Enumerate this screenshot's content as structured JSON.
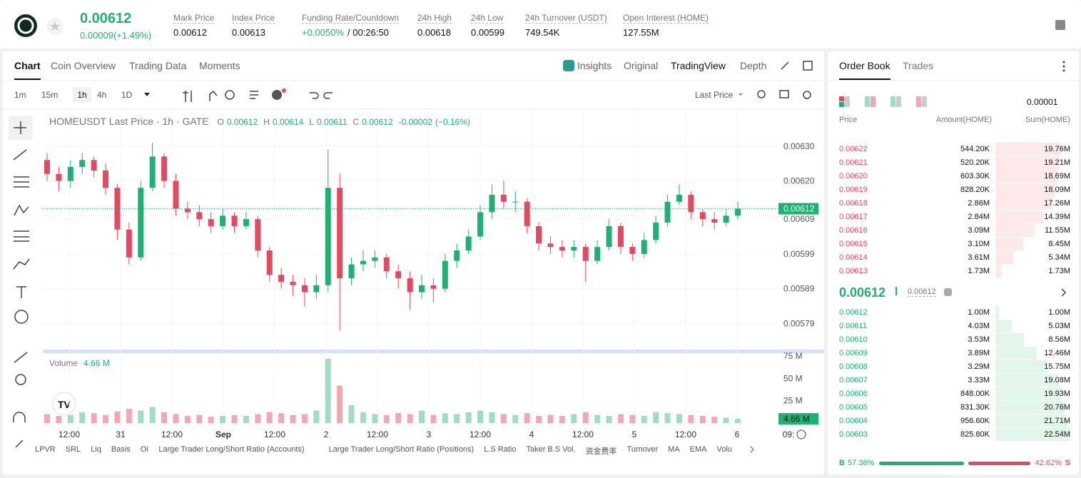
{
  "header": {
    "price": "0.00612",
    "change": "0.00009(+1.49%)",
    "stats": [
      {
        "label": "Mark Price",
        "value": "0.00612"
      },
      {
        "label": "Index Price",
        "value": "0.00613"
      },
      {
        "label": "Funding Rate/Countdown",
        "value": "+0.0050%",
        "countdown": "/ 00:26:50"
      },
      {
        "label": "24h High",
        "value": "0.00618"
      },
      {
        "label": "24h Low",
        "value": "0.00599"
      },
      {
        "label": "24h Turnover (USDT)",
        "value": "749.54K"
      },
      {
        "label": "Open Interest (HOME)",
        "value": "127.55M"
      }
    ]
  },
  "tabs": [
    "Chart",
    "Coin Overview",
    "Trading Data",
    "Moments"
  ],
  "views": [
    "Insights",
    "Original",
    "TradingView",
    "Depth"
  ],
  "intervals": [
    "1m",
    "15m",
    "1h",
    "4h",
    "1D"
  ],
  "price_type": "Last Price",
  "chart_data": {
    "type": "candlestick",
    "symbol": "HOMEUSDT Last Price · 1h · GATE",
    "ohlc": [
      {
        "key": "O",
        "value": "0.00612"
      },
      {
        "key": "H",
        "value": "0.00614"
      },
      {
        "key": "L",
        "value": "0.00611"
      },
      {
        "key": "C",
        "value": "0.00612"
      }
    ],
    "change": "-0.00002",
    "change_pct": "(−0.16%)",
    "ylim": [
      0.005715,
      0.0064
    ],
    "yticks": [
      {
        "value": 0.0063,
        "label": "0.00630"
      },
      {
        "value": 0.0062,
        "label": "0.00620"
      },
      0.00609,
      0.00599,
      0.00589,
      0.00579
    ],
    "last_price": 0.00612,
    "candles": [
      [
        0.00626,
        0.00628,
        0.0062,
        0.00622
      ],
      [
        0.00622,
        0.00624,
        0.00617,
        0.0062
      ],
      [
        0.0062,
        0.00626,
        0.00618,
        0.00624
      ],
      [
        0.00624,
        0.00628,
        0.00622,
        0.00626
      ],
      [
        0.00626,
        0.00627,
        0.00621,
        0.00623
      ],
      [
        0.00623,
        0.00625,
        0.00616,
        0.00618
      ],
      [
        0.00618,
        0.00619,
        0.00603,
        0.00606
      ],
      [
        0.00606,
        0.00608,
        0.00596,
        0.00598
      ],
      [
        0.00598,
        0.0062,
        0.00597,
        0.00618
      ],
      [
        0.00618,
        0.00631,
        0.00617,
        0.00627
      ],
      [
        0.00627,
        0.00628,
        0.00618,
        0.0062
      ],
      [
        0.0062,
        0.00622,
        0.0061,
        0.00612
      ],
      [
        0.00612,
        0.00614,
        0.00609,
        0.00611
      ],
      [
        0.00611,
        0.00613,
        0.00607,
        0.00609
      ],
      [
        0.00609,
        0.00611,
        0.00605,
        0.00607
      ],
      [
        0.00607,
        0.00612,
        0.00606,
        0.0061
      ],
      [
        0.0061,
        0.00611,
        0.00605,
        0.00607
      ],
      [
        0.00607,
        0.00611,
        0.00606,
        0.00609
      ],
      [
        0.00609,
        0.0061,
        0.00598,
        0.006
      ],
      [
        0.006,
        0.00601,
        0.00591,
        0.00593
      ],
      [
        0.00593,
        0.00595,
        0.00589,
        0.00591
      ],
      [
        0.00591,
        0.00593,
        0.00587,
        0.0059
      ],
      [
        0.0059,
        0.00592,
        0.00584,
        0.00588
      ],
      [
        0.00588,
        0.00593,
        0.00586,
        0.0059
      ],
      [
        0.0059,
        0.00629,
        0.00588,
        0.00618
      ],
      [
        0.00618,
        0.00622,
        0.00577,
        0.00592
      ],
      [
        0.00592,
        0.00598,
        0.0059,
        0.00596
      ],
      [
        0.00596,
        0.006,
        0.00594,
        0.00597
      ],
      [
        0.00597,
        0.006,
        0.00595,
        0.00598
      ],
      [
        0.00598,
        0.00599,
        0.00592,
        0.00594
      ],
      [
        0.00594,
        0.00596,
        0.00589,
        0.00592
      ],
      [
        0.00592,
        0.00594,
        0.00583,
        0.00588
      ],
      [
        0.00588,
        0.00593,
        0.00586,
        0.0059
      ],
      [
        0.0059,
        0.00592,
        0.00585,
        0.00589
      ],
      [
        0.00589,
        0.00599,
        0.00588,
        0.00597
      ],
      [
        0.00597,
        0.00602,
        0.00595,
        0.006
      ],
      [
        0.006,
        0.00606,
        0.00599,
        0.00604
      ],
      [
        0.00604,
        0.00613,
        0.00603,
        0.00611
      ],
      [
        0.00611,
        0.00619,
        0.00609,
        0.00616
      ],
      [
        0.00616,
        0.0062,
        0.00612,
        0.00614
      ],
      [
        0.00614,
        0.00617,
        0.00611,
        0.00614
      ],
      [
        0.00614,
        0.00615,
        0.00605,
        0.00607
      ],
      [
        0.00607,
        0.00608,
        0.006,
        0.00602
      ],
      [
        0.00602,
        0.00604,
        0.00599,
        0.00601
      ],
      [
        0.00601,
        0.00603,
        0.00598,
        0.006
      ],
      [
        0.006,
        0.00603,
        0.00598,
        0.00601
      ],
      [
        0.00601,
        0.00602,
        0.00591,
        0.00597
      ],
      [
        0.00597,
        0.00603,
        0.00596,
        0.00601
      ],
      [
        0.00601,
        0.00609,
        0.006,
        0.00607
      ],
      [
        0.00607,
        0.00608,
        0.00599,
        0.00601
      ],
      [
        0.00601,
        0.00602,
        0.00597,
        0.00599
      ],
      [
        0.00599,
        0.00605,
        0.00598,
        0.00603
      ],
      [
        0.00603,
        0.0061,
        0.00602,
        0.00608
      ],
      [
        0.00608,
        0.00616,
        0.00607,
        0.00614
      ],
      [
        0.00614,
        0.00619,
        0.00613,
        0.00616
      ],
      [
        0.00616,
        0.00617,
        0.00609,
        0.00611
      ],
      [
        0.00611,
        0.00612,
        0.00607,
        0.00609
      ],
      [
        0.00609,
        0.00611,
        0.00606,
        0.00608
      ],
      [
        0.00608,
        0.00612,
        0.00607,
        0.0061
      ],
      [
        0.0061,
        0.00614,
        0.00609,
        0.00612
      ]
    ],
    "volume_title": "Volume",
    "volume_label": "4.66 M",
    "volume": [
      10,
      8,
      9,
      12,
      11,
      9,
      13,
      16,
      14,
      18,
      12,
      10,
      8,
      9,
      7,
      8,
      9,
      8,
      10,
      12,
      11,
      9,
      10,
      14,
      72,
      42,
      20,
      12,
      10,
      9,
      11,
      10,
      14,
      9,
      11,
      10,
      12,
      14,
      12,
      10,
      9,
      11,
      8,
      9,
      8,
      10,
      12,
      9,
      8,
      10,
      9,
      8,
      12,
      11,
      10,
      9,
      8,
      7,
      6,
      4.66
    ],
    "vlim": [
      0,
      75
    ],
    "vticks": [
      {
        "value": 75,
        "label": "75 M"
      },
      {
        "value": 50,
        "label": "50 M"
      },
      {
        "value": 25,
        "label": "25 M"
      }
    ],
    "x_labels": [
      "12:00",
      "31",
      "12:00",
      "Sep",
      "12:00",
      "2",
      "12:00",
      "3",
      "12:00",
      "4",
      "12:00",
      "5",
      "12:00",
      "6",
      "09:"
    ]
  },
  "indicators": [
    "LPVR",
    "SRL",
    "Liq",
    "Basis",
    "OI",
    "Large Trader Long/Short Ratio (Accounts)",
    "Large Trader Long/Short Ratio (Positions)",
    "L.S Ratio",
    "Taker B.S Vol.",
    "资金费率",
    "Turnover",
    "MA",
    "EMA",
    "Volu"
  ],
  "order_book": {
    "tabs": [
      "Order Book",
      "Trades"
    ],
    "tick": "0.00001",
    "columns": [
      "Price",
      "Amount(HOME)",
      "Sum(HOME)"
    ],
    "asks": [
      [
        "0.00622",
        "544.20K",
        "19.76M"
      ],
      [
        "0.00621",
        "520.20K",
        "19.21M"
      ],
      [
        "0.00620",
        "603.30K",
        "18.69M"
      ],
      [
        "0.00619",
        "828.20K",
        "18.09M"
      ],
      [
        "0.00618",
        "2.86M",
        "17.26M"
      ],
      [
        "0.00617",
        "2.84M",
        "14.39M"
      ],
      [
        "0.00616",
        "3.09M",
        "11.55M"
      ],
      [
        "0.00615",
        "3.10M",
        "8.45M"
      ],
      [
        "0.00614",
        "3.61M",
        "5.34M"
      ],
      [
        "0.00613",
        "1.73M",
        "1.73M"
      ]
    ],
    "mid": {
      "price": "0.00612",
      "index": "0.00612"
    },
    "bids": [
      [
        "0.00612",
        "1.00M",
        "1.00M"
      ],
      [
        "0.00611",
        "4.03M",
        "5.03M"
      ],
      [
        "0.00610",
        "3.53M",
        "8.56M"
      ],
      [
        "0.00609",
        "3.89M",
        "12.46M"
      ],
      [
        "0.00608",
        "3.29M",
        "15.75M"
      ],
      [
        "0.00607",
        "3.33M",
        "19.08M"
      ],
      [
        "0.00606",
        "848.00K",
        "19.93M"
      ],
      [
        "0.00605",
        "831.30K",
        "20.76M"
      ],
      [
        "0.00604",
        "956.60K",
        "21.71M"
      ],
      [
        "0.00603",
        "825.80K",
        "22.54M"
      ]
    ],
    "buy_label": "B",
    "buy_ratio": "57.38%",
    "sell_ratio": "42.62%",
    "sell_label": "S"
  }
}
